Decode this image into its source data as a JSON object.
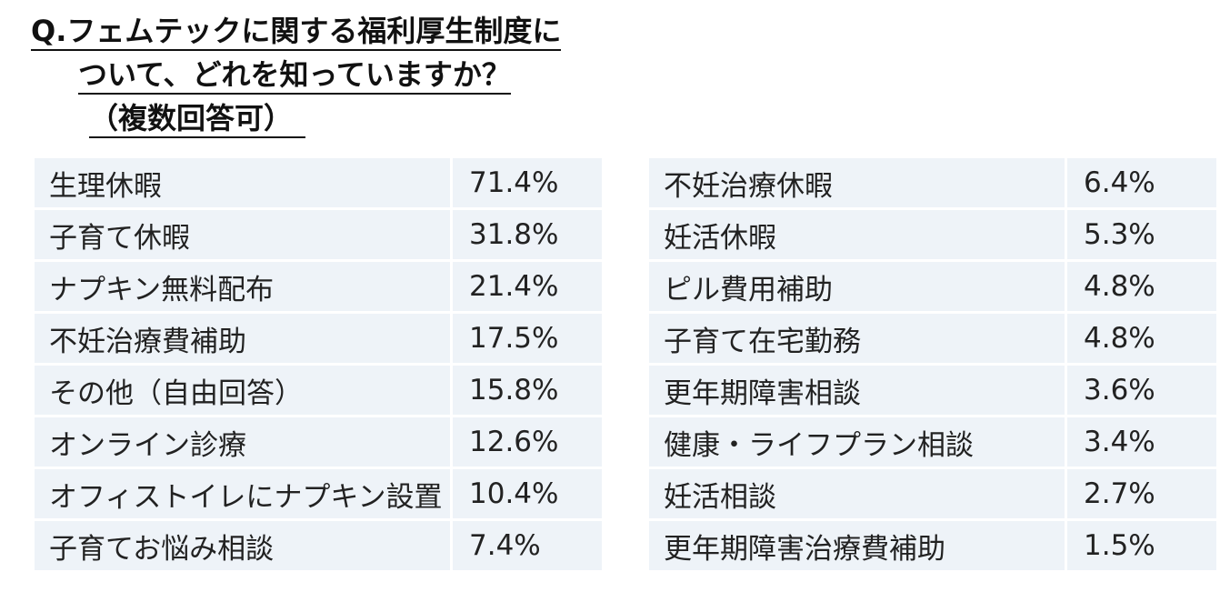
{
  "question": {
    "line1": "Q.フェムテックに関する福利厚生制度に",
    "line2": "ついて、どれを知っていますか？",
    "line3": "（複数回答可）"
  },
  "left_table": [
    {
      "label": "生理休暇",
      "value": "71.4%"
    },
    {
      "label": "子育て休暇",
      "value": "31.8%"
    },
    {
      "label": "ナプキン無料配布",
      "value": "21.4%"
    },
    {
      "label": "不妊治療費補助",
      "value": "17.5%"
    },
    {
      "label": "その他（自由回答）",
      "value": "15.8%"
    },
    {
      "label": "オンライン診療",
      "value": "12.6%"
    },
    {
      "label": "オフィストイレにナプキン設置",
      "value": "10.4%"
    },
    {
      "label": "子育てお悩み相談",
      "value": "7.4%"
    }
  ],
  "right_table": [
    {
      "label": "不妊治療休暇",
      "value": "6.4%"
    },
    {
      "label": "妊活休暇",
      "value": "5.3%"
    },
    {
      "label": "ピル費用補助",
      "value": "4.8%"
    },
    {
      "label": "子育て在宅勤務",
      "value": "4.8%"
    },
    {
      "label": "更年期障害相談",
      "value": "3.6%"
    },
    {
      "label": "健康・ライフプラン相談",
      "value": "3.4%"
    },
    {
      "label": "妊活相談",
      "value": "2.7%"
    },
    {
      "label": "更年期障害治療費補助",
      "value": "1.5%"
    }
  ],
  "colors": {
    "cell_background": "#eef3f8",
    "text": "#222222"
  }
}
